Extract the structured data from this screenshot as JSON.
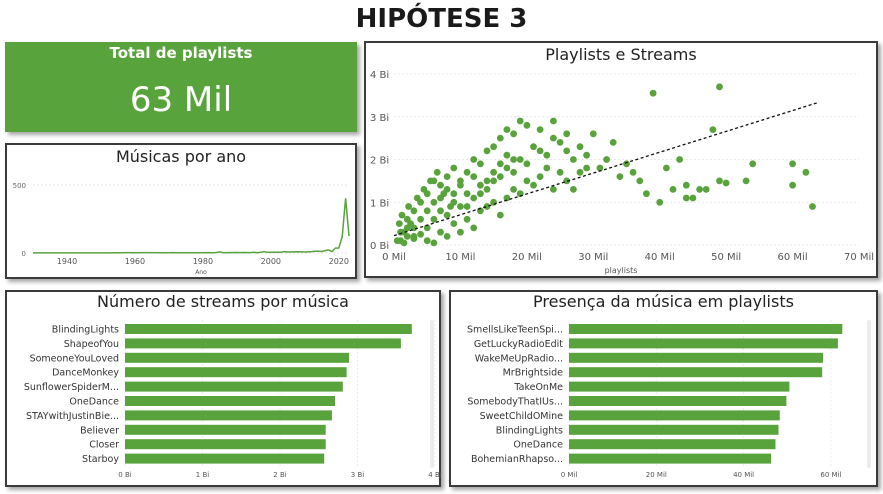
{
  "page": {
    "title": "HIPÓTESE 3"
  },
  "kpi": {
    "label": "Total de playlists",
    "value": "63 Mil"
  },
  "chart_data": [
    {
      "id": "musicas_por_ano",
      "type": "line",
      "title": "Músicas por ano",
      "xlabel": "Ano",
      "ylabel": "",
      "xlim": [
        1930,
        2023
      ],
      "ylim": [
        0,
        500
      ],
      "x_ticks": [
        "1940",
        "1960",
        "1980",
        "2000",
        "2020"
      ],
      "y_ticks": [
        "0",
        "500"
      ],
      "color": "#58a33c",
      "x": [
        1930,
        1942,
        1946,
        1950,
        1957,
        1958,
        1959,
        1963,
        1968,
        1970,
        1971,
        1973,
        1975,
        1979,
        1982,
        1983,
        1984,
        1985,
        1986,
        1987,
        1990,
        1991,
        1992,
        1994,
        1995,
        1996,
        1997,
        1998,
        1999,
        2000,
        2002,
        2003,
        2004,
        2005,
        2008,
        2010,
        2012,
        2013,
        2014,
        2015,
        2016,
        2017,
        2018,
        2019,
        2020,
        2021,
        2022,
        2023
      ],
      "y": [
        1,
        1,
        1,
        1,
        2,
        3,
        2,
        3,
        2,
        2,
        3,
        2,
        2,
        2,
        3,
        2,
        4,
        8,
        2,
        3,
        4,
        3,
        4,
        3,
        5,
        2,
        5,
        10,
        5,
        6,
        6,
        5,
        10,
        7,
        9,
        7,
        10,
        13,
        13,
        11,
        18,
        23,
        10,
        36,
        37,
        119,
        402,
        124
      ]
    },
    {
      "id": "playlists_e_streams",
      "type": "scatter",
      "title": "Playlists e Streams",
      "xlabel": "playlists",
      "ylabel": "",
      "xlim": [
        0,
        70
      ],
      "ylim": [
        0,
        4
      ],
      "x_unit": "Mil",
      "y_unit": "Bi",
      "x_ticks": [
        "0 Mil",
        "10 Mil",
        "20 Mil",
        "30 Mil",
        "40 Mil",
        "50 Mil",
        "60 Mil",
        "70 Mil"
      ],
      "y_ticks": [
        "0 Bi",
        "1 Bi",
        "2 Bi",
        "3 Bi",
        "4 Bi"
      ],
      "trend_line": [
        [
          0,
          0.22
        ],
        [
          64,
          3.34
        ]
      ],
      "color": "#58a33c",
      "points": [
        [
          1,
          0.1
        ],
        [
          2,
          0.2
        ],
        [
          3,
          0.15
        ],
        [
          1.5,
          0.3
        ],
        [
          4,
          0.25
        ],
        [
          5,
          0.4
        ],
        [
          6,
          0.6
        ],
        [
          2.5,
          0.5
        ],
        [
          7,
          0.8
        ],
        [
          8,
          0.7
        ],
        [
          9,
          1.0
        ],
        [
          10,
          0.9
        ],
        [
          11,
          1.2
        ],
        [
          12,
          1.1
        ],
        [
          13,
          1.4
        ],
        [
          14,
          1.3
        ],
        [
          15,
          1.5
        ],
        [
          16,
          1.6
        ],
        [
          17,
          1.8
        ],
        [
          18,
          1.7
        ],
        [
          19,
          2.0
        ],
        [
          20,
          1.9
        ],
        [
          21,
          2.3
        ],
        [
          22,
          2.2
        ],
        [
          23,
          2.1
        ],
        [
          24,
          2.5
        ],
        [
          25,
          2.4
        ],
        [
          26,
          2.2
        ],
        [
          27,
          2.0
        ],
        [
          28,
          2.3
        ],
        [
          29,
          2.1
        ],
        [
          30,
          2.6
        ],
        [
          31,
          1.8
        ],
        [
          32,
          2.0
        ],
        [
          33,
          2.4
        ],
        [
          34,
          1.6
        ],
        [
          35,
          1.9
        ],
        [
          36,
          1.7
        ],
        [
          37,
          1.5
        ],
        [
          38,
          1.2
        ],
        [
          39,
          3.55
        ],
        [
          40,
          1.0
        ],
        [
          42,
          1.3
        ],
        [
          43,
          2.0
        ],
        [
          44,
          1.4
        ],
        [
          45,
          1.1
        ],
        [
          47,
          1.3
        ],
        [
          48,
          2.7
        ],
        [
          49,
          1.5
        ],
        [
          50,
          1.45
        ],
        [
          49,
          3.7
        ],
        [
          60,
          1.9
        ],
        [
          62,
          1.7
        ],
        [
          63,
          0.9
        ],
        [
          60,
          1.4
        ],
        [
          5,
          0.1
        ],
        [
          6,
          0.05
        ],
        [
          7,
          0.3
        ],
        [
          8,
          0.2
        ],
        [
          9,
          0.5
        ],
        [
          10,
          0.3
        ],
        [
          11,
          0.6
        ],
        [
          12,
          0.4
        ],
        [
          13,
          0.8
        ],
        [
          14,
          0.9
        ],
        [
          15,
          1.0
        ],
        [
          16,
          0.7
        ],
        [
          17,
          1.1
        ],
        [
          18,
          1.3
        ],
        [
          19,
          1.2
        ],
        [
          20,
          1.5
        ],
        [
          21,
          1.4
        ],
        [
          22,
          1.6
        ],
        [
          23,
          1.8
        ],
        [
          24,
          1.3
        ],
        [
          25,
          1.7
        ],
        [
          26,
          1.5
        ],
        [
          27,
          1.3
        ],
        [
          28,
          1.7
        ],
        [
          29,
          1.8
        ],
        [
          3,
          0.8
        ],
        [
          4,
          1.0
        ],
        [
          5,
          1.2
        ],
        [
          6,
          1.5
        ],
        [
          7,
          1.4
        ],
        [
          8,
          1.6
        ],
        [
          9,
          1.8
        ],
        [
          10,
          1.5
        ],
        [
          11,
          1.7
        ],
        [
          12,
          2.0
        ],
        [
          13,
          1.9
        ],
        [
          14,
          2.2
        ],
        [
          15,
          2.3
        ],
        [
          16,
          2.5
        ],
        [
          17,
          2.7
        ],
        [
          18,
          2.6
        ],
        [
          19,
          2.9
        ],
        [
          20,
          2.8
        ],
        [
          22,
          2.7
        ],
        [
          24,
          2.9
        ],
        [
          26,
          2.6
        ],
        [
          41,
          1.8
        ],
        [
          44,
          1.1
        ],
        [
          46,
          1.3
        ],
        [
          54,
          1.9
        ],
        [
          53,
          1.5
        ],
        [
          2,
          0.6
        ],
        [
          3,
          0.4
        ],
        [
          4,
          0.6
        ],
        [
          5,
          0.8
        ],
        [
          6,
          1.0
        ],
        [
          7,
          1.1
        ],
        [
          8,
          1.3
        ],
        [
          9,
          1.2
        ],
        [
          10,
          1.4
        ],
        [
          11,
          0.9
        ],
        [
          12,
          1.6
        ],
        [
          13,
          1.2
        ],
        [
          14,
          1.5
        ],
        [
          15,
          1.7
        ],
        [
          16,
          1.9
        ],
        [
          17,
          2.1
        ],
        [
          18,
          2.0
        ],
        [
          0.5,
          0.1
        ],
        [
          1,
          0.3
        ],
        [
          1.5,
          0.05
        ],
        [
          2,
          0.4
        ],
        [
          3,
          0.2
        ],
        [
          0.8,
          0.5
        ],
        [
          1.2,
          0.7
        ],
        [
          2.2,
          0.9
        ],
        [
          3.5,
          1.1
        ],
        [
          4.5,
          1.3
        ],
        [
          5.5,
          1.5
        ],
        [
          6.5,
          1.7
        ],
        [
          7.5,
          1.2
        ],
        [
          8.5,
          0.9
        ]
      ]
    },
    {
      "id": "numero_de_streams_por_musica",
      "type": "bar",
      "orientation": "horizontal",
      "title": "Número de streams por música",
      "xlabel": "",
      "ylabel": "",
      "xlim": [
        0,
        4
      ],
      "x_unit": "Bi",
      "x_ticks": [
        "0 Bi",
        "1 Bi",
        "2 Bi",
        "3 Bi",
        "4 Bi"
      ],
      "categories": [
        "BlindingLights",
        "ShapeofYou",
        "SomeoneYouLoved",
        "DanceMonkey",
        "SunflowerSpiderM...",
        "OneDance",
        "STAYwithJustinBie...",
        "Believer",
        "Closer",
        "Starboy"
      ],
      "values": [
        3.7,
        3.56,
        2.89,
        2.86,
        2.81,
        2.71,
        2.67,
        2.59,
        2.59,
        2.57
      ],
      "color": "#58a33c"
    },
    {
      "id": "presenca_da_musica_em_playlists",
      "type": "bar",
      "orientation": "horizontal",
      "title": "Presença da música em playlists",
      "xlabel": "",
      "ylabel": "",
      "xlim": [
        0,
        63
      ],
      "x_unit": "Mil",
      "x_ticks": [
        "0 Mil",
        "20 Mil",
        "40 Mil",
        "60 Mil"
      ],
      "categories": [
        "SmellsLikeTeenSpi...",
        "GetLuckyRadioEdit",
        "WakeMeUpRadio...",
        "MrBrightside",
        "TakeOnMe",
        "SomebodyThatIUs...",
        "SweetChildOMine",
        "BlindingLights",
        "OneDance",
        "BohemianRhapso..."
      ],
      "values": [
        62.6,
        61.6,
        58.2,
        58.0,
        50.5,
        49.8,
        48.3,
        48.0,
        47.3,
        46.3
      ],
      "color": "#58a33c"
    }
  ]
}
